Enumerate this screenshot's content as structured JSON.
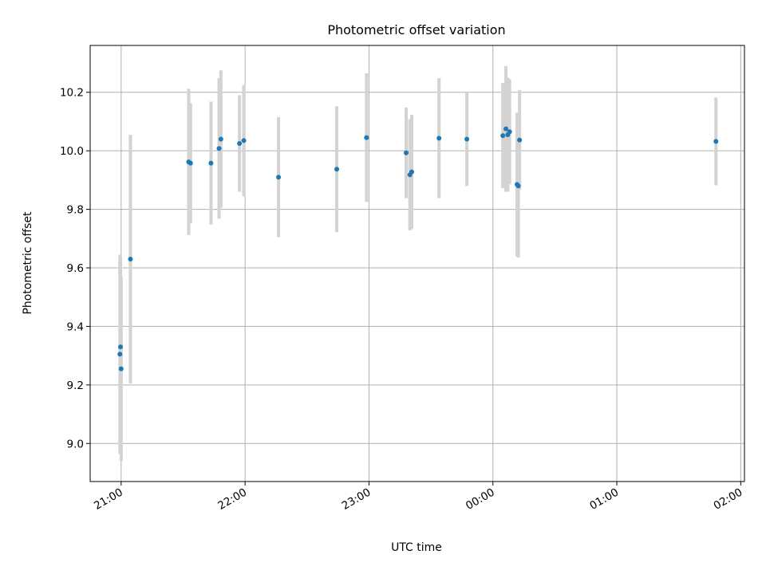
{
  "chart_data": {
    "type": "scatter",
    "title": "Photometric offset variation",
    "xlabel": "UTC time",
    "ylabel": "Photometric offset",
    "x_unit": "hours UTC on a continuous clock (24 = 00:00 next day)",
    "xlim": [
      20.75,
      26.03
    ],
    "ylim": [
      8.87,
      10.36
    ],
    "grid": true,
    "x_ticks": [
      {
        "value": 21,
        "label": "21:00"
      },
      {
        "value": 22,
        "label": "22:00"
      },
      {
        "value": 23,
        "label": "23:00"
      },
      {
        "value": 24,
        "label": "00:00"
      },
      {
        "value": 25,
        "label": "01:00"
      },
      {
        "value": 26,
        "label": "02:00"
      }
    ],
    "y_ticks": [
      {
        "value": 9.0,
        "label": "9.0"
      },
      {
        "value": 9.2,
        "label": "9.2"
      },
      {
        "value": 9.4,
        "label": "9.4"
      },
      {
        "value": 9.6,
        "label": "9.6"
      },
      {
        "value": 9.8,
        "label": "9.8"
      },
      {
        "value": 10.0,
        "label": "10.0"
      },
      {
        "value": 10.2,
        "label": "10.2"
      }
    ],
    "marker_color": "#1f77b4",
    "errorbar_color": "#d3d3d3",
    "series": [
      {
        "points": [
          {
            "x": 20.99,
            "y": 9.305,
            "err": 0.34
          },
          {
            "x": 20.995,
            "y": 9.33,
            "err": 0.31
          },
          {
            "x": 21.0,
            "y": 9.255,
            "err": 0.315
          },
          {
            "x": 21.075,
            "y": 9.63,
            "err": 0.425
          },
          {
            "x": 21.545,
            "y": 9.962,
            "err": 0.25
          },
          {
            "x": 21.56,
            "y": 9.958,
            "err": 0.205
          },
          {
            "x": 21.725,
            "y": 9.958,
            "err": 0.21
          },
          {
            "x": 21.79,
            "y": 10.008,
            "err": 0.24
          },
          {
            "x": 21.805,
            "y": 10.04,
            "err": 0.235
          },
          {
            "x": 21.955,
            "y": 10.025,
            "err": 0.165
          },
          {
            "x": 21.99,
            "y": 10.035,
            "err": 0.19
          },
          {
            "x": 22.27,
            "y": 9.91,
            "err": 0.205
          },
          {
            "x": 22.74,
            "y": 9.937,
            "err": 0.215
          },
          {
            "x": 22.98,
            "y": 10.045,
            "err": 0.22
          },
          {
            "x": 23.3,
            "y": 9.993,
            "err": 0.155
          },
          {
            "x": 23.33,
            "y": 9.918,
            "err": 0.19
          },
          {
            "x": 23.345,
            "y": 9.928,
            "err": 0.195
          },
          {
            "x": 23.565,
            "y": 10.043,
            "err": 0.205
          },
          {
            "x": 23.79,
            "y": 10.04,
            "err": 0.16
          },
          {
            "x": 24.08,
            "y": 10.052,
            "err": 0.18
          },
          {
            "x": 24.105,
            "y": 10.075,
            "err": 0.215
          },
          {
            "x": 24.12,
            "y": 10.055,
            "err": 0.195
          },
          {
            "x": 24.135,
            "y": 10.065,
            "err": 0.18
          },
          {
            "x": 24.195,
            "y": 9.885,
            "err": 0.245
          },
          {
            "x": 24.205,
            "y": 9.88,
            "err": 0.245
          },
          {
            "x": 24.215,
            "y": 10.037,
            "err": 0.17
          },
          {
            "x": 25.8,
            "y": 10.032,
            "err": 0.15
          }
        ]
      }
    ]
  }
}
